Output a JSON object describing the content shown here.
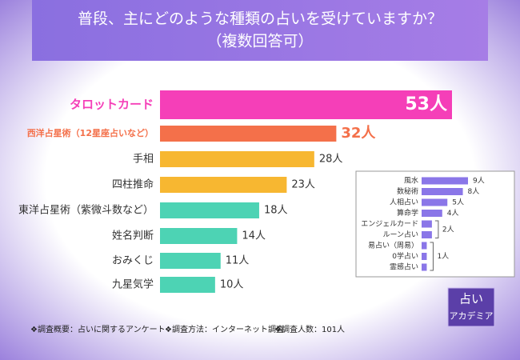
{
  "chart_data": [
    {
      "type": "hbar",
      "title": "普段、主にどのような種類の占いを受けていますか？",
      "subtitle": "（複数回答可）",
      "categories": [
        "タロットカード",
        "西洋占星術（12星座占いなど）",
        "手相",
        "四柱推命",
        "東洋占星術（紫微斗数など）",
        "姓名判断",
        "おみくじ",
        "九星気学"
      ],
      "values": [
        53,
        32,
        28,
        23,
        18,
        14,
        11,
        10
      ],
      "value_labels": [
        "53人",
        "32人",
        "28人",
        "23人",
        "18人",
        "14人",
        "11人",
        "10人"
      ],
      "colors": [
        "#f53fb8",
        "#f4704a",
        "#f7b731",
        "#f7b731",
        "#4dd3b4",
        "#4dd3b4",
        "#4dd3b4",
        "#4dd3b4"
      ]
    },
    {
      "type": "hbar",
      "categories": [
        "風水",
        "数秘術",
        "人相占い",
        "算命学",
        "エンジェルカード",
        "ルーン占い",
        "易占い（周易）",
        "0学占い",
        "霊感占い"
      ],
      "values": [
        9,
        8,
        5,
        4,
        2,
        2,
        1,
        1,
        1
      ],
      "value_labels": [
        "9人",
        "8人",
        "5人",
        "4人",
        "2人",
        null,
        "1人",
        null,
        null
      ],
      "color": "#8a76e8"
    }
  ],
  "footer": [
    "❖調査概要：占いに関するアンケート",
    "❖調査方法：インターネット調査",
    "❖調査人数：101人"
  ],
  "logo": [
    "占い",
    "アカデミア"
  ]
}
